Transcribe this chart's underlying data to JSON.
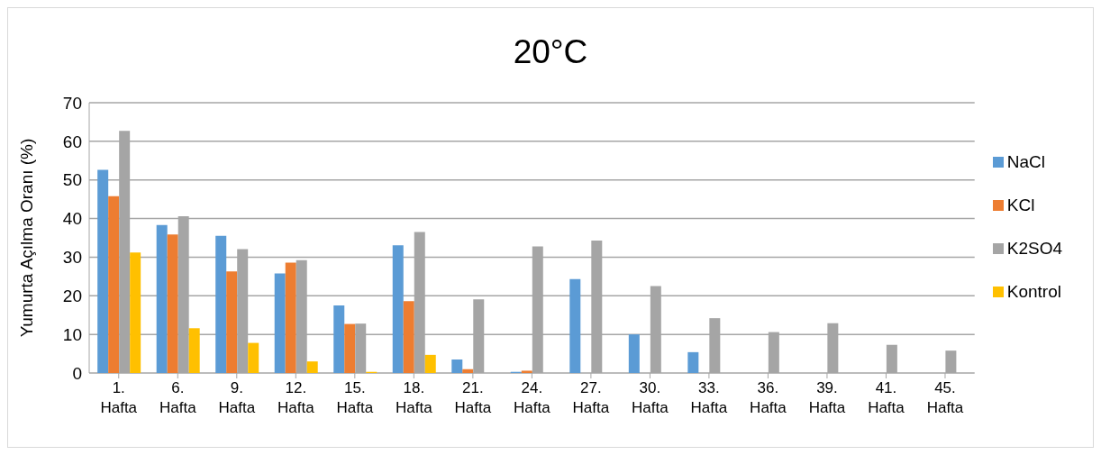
{
  "chart_data": {
    "type": "bar",
    "title": "20°C",
    "ylabel": "Yumurta Açılma Oranı (%)",
    "categories": [
      "1. Hafta",
      "6. Hafta",
      "9. Hafta",
      "12. Hafta",
      "15. Hafta",
      "18. Hafta",
      "21. Hafta",
      "24. Hafta",
      "27. Hafta",
      "30. Hafta",
      "33. Hafta",
      "36. Hafta",
      "39. Hafta",
      "41. Hafta",
      "45. Hafta"
    ],
    "series": [
      {
        "name": "NaCl",
        "color": "#5b9bd5",
        "values": [
          52.6,
          38.3,
          35.5,
          25.8,
          17.5,
          33.1,
          3.5,
          0.3,
          24.3,
          10.0,
          5.4,
          0,
          0,
          0,
          0
        ]
      },
      {
        "name": "KCl",
        "color": "#ed7d31",
        "values": [
          45.8,
          35.9,
          26.3,
          28.6,
          12.7,
          18.6,
          1.0,
          0.6,
          0,
          0,
          0,
          0,
          0,
          0,
          0
        ]
      },
      {
        "name": "K2SO4",
        "color": "#a5a5a5",
        "values": [
          62.7,
          40.6,
          32.1,
          29.2,
          12.8,
          36.5,
          19.1,
          32.8,
          34.3,
          22.5,
          14.2,
          10.6,
          12.9,
          7.3,
          5.8
        ]
      },
      {
        "name": "Kontrol",
        "color": "#ffc000",
        "values": [
          31.2,
          11.6,
          7.8,
          3.0,
          0.3,
          4.7,
          0,
          0,
          0,
          0,
          0,
          0,
          0,
          0,
          0
        ]
      }
    ],
    "ylim": [
      0,
      70
    ],
    "yticks": [
      0,
      10,
      20,
      30,
      40,
      50,
      60,
      70
    ],
    "grid": "y",
    "legend": "right"
  }
}
